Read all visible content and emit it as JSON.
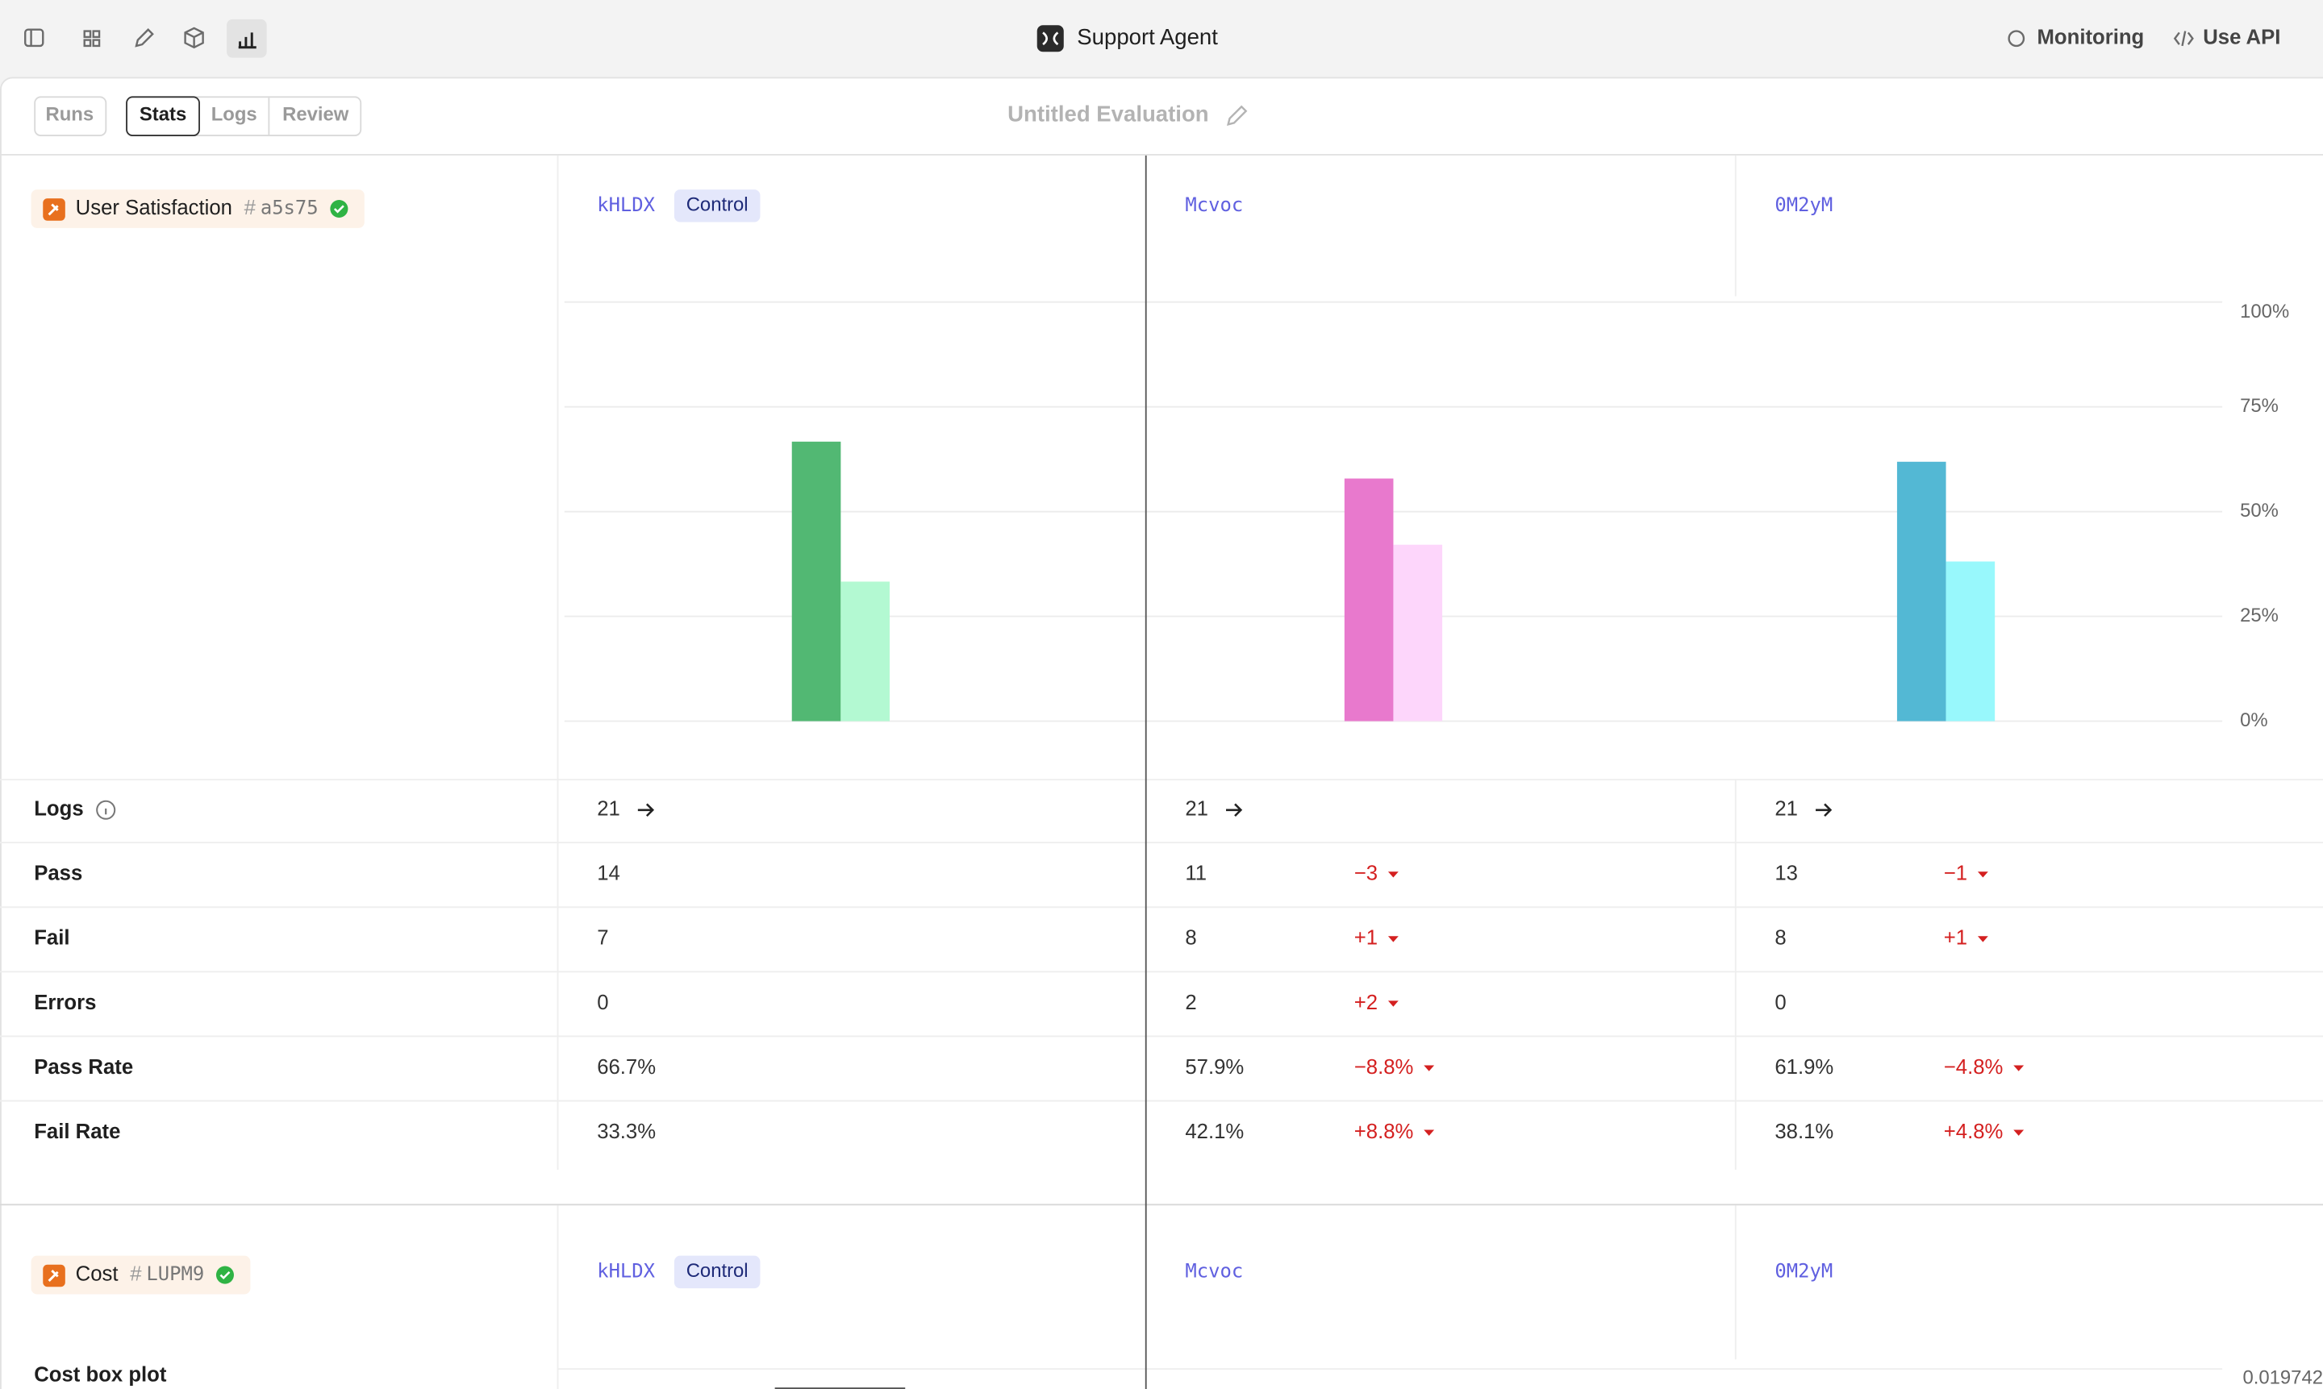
{
  "toolbar": {
    "app_title": "Support Agent",
    "monitoring": "Monitoring",
    "use_api": "Use API"
  },
  "tabs": {
    "runs": "Runs",
    "stats": "Stats",
    "logs": "Logs",
    "review": "Review"
  },
  "evaluation_title": "Untitled Evaluation",
  "satisfaction": {
    "score_name": "User Satisfaction",
    "score_id": "a5s75",
    "control_badge": "Control",
    "rows": [
      {
        "label": "Logs",
        "cells": [
          {
            "value": "21"
          },
          {
            "value": "21"
          },
          {
            "value": "21"
          }
        ]
      },
      {
        "label": "Pass",
        "cells": [
          {
            "value": "14"
          },
          {
            "value": "11",
            "delta": "−3"
          },
          {
            "value": "13",
            "delta": "−1"
          }
        ]
      },
      {
        "label": "Fail",
        "cells": [
          {
            "value": "7"
          },
          {
            "value": "8",
            "delta": "+1"
          },
          {
            "value": "8",
            "delta": "+1"
          }
        ]
      },
      {
        "label": "Errors",
        "cells": [
          {
            "value": "0"
          },
          {
            "value": "2",
            "delta": "+2"
          },
          {
            "value": "0"
          }
        ]
      },
      {
        "label": "Pass Rate",
        "cells": [
          {
            "value": "66.7%"
          },
          {
            "value": "57.9%",
            "delta": "−8.8%"
          },
          {
            "value": "61.9%",
            "delta": "−4.8%"
          }
        ]
      },
      {
        "label": "Fail Rate",
        "cells": [
          {
            "value": "33.3%"
          },
          {
            "value": "42.1%",
            "delta": "+8.8%"
          },
          {
            "value": "38.1%",
            "delta": "+4.8%"
          }
        ]
      }
    ]
  },
  "chart_data": {
    "type": "bar",
    "categories": [
      "kHLDX",
      "Mcvoc",
      "0M2yM"
    ],
    "series": [
      {
        "values": [
          66.7,
          57.9,
          61.9
        ],
        "colors": [
          "#52b873",
          "#e879cd",
          "#53b8d4"
        ]
      },
      {
        "values": [
          33.3,
          42.1,
          38.1
        ],
        "colors": [
          "#b3f9d2",
          "#fdd6fb",
          "#98f8fc"
        ]
      }
    ],
    "ylim": [
      0,
      100
    ],
    "yticks": [
      {
        "value": 0,
        "label": "0%"
      },
      {
        "value": 25,
        "label": "25%"
      },
      {
        "value": 50,
        "label": "50%"
      },
      {
        "value": 75,
        "label": "75%"
      },
      {
        "value": 100,
        "label": "100%"
      }
    ],
    "grid": true
  },
  "cost": {
    "score_name": "Cost",
    "score_id": "LUPM9",
    "control_badge": "Control",
    "experiments": [
      "kHLDX",
      "Mcvoc",
      "0M2yM"
    ],
    "row_label": "Cost box plot",
    "axis_top": "0.019742"
  }
}
